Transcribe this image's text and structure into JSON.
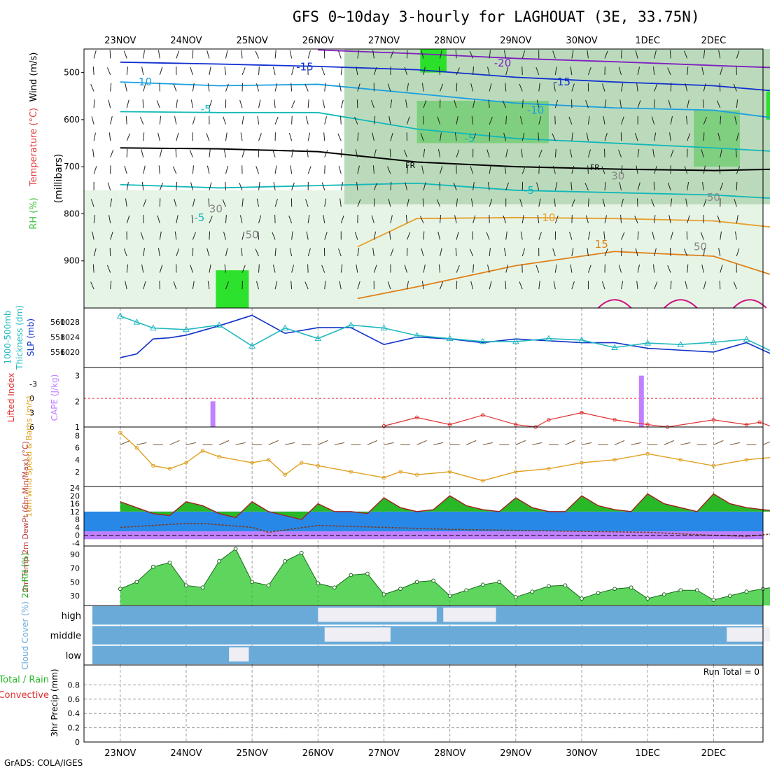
{
  "title": "GFS 0~10day 3-hourly for LAGHOUAT (3E, 33.75N)",
  "credit": "GrADS: COLA/IGES",
  "colors": {
    "grid": "#9a9a9a",
    "rh_light": "#e6f4e6",
    "rh_mid": "#b8d8b8",
    "rh_dark": "#7ccf7c",
    "rh_max": "#22e022",
    "temp_cold": "#1030d0",
    "temp_cool": "#1aa0e0",
    "temp_mid": "#10b8b8",
    "temp_warm": "#e08018",
    "temp_hot": "#d01080",
    "slp": "#1030c8",
    "thickness": "#20b8c0",
    "cape": "#c080ff",
    "lifted": "#e03030",
    "wind": "#e0a020",
    "barb": "#7a5a3a",
    "temp_fill": "#28b828",
    "dewpt_fill": "#2888e8",
    "rh2m": "#28c828",
    "cloud": "#6aaad8"
  },
  "chart_data": [
    {
      "type": "area",
      "panel": "RH / Temperature / Wind cross-section",
      "ylabel": "(millibars)",
      "side_labels": [
        "Wind (m/s)",
        "Temperature (°C)",
        "RH (%)"
      ],
      "yticks": [
        500,
        600,
        700,
        800,
        900
      ],
      "ylim": [
        1000,
        450
      ],
      "contour_labels": [
        "-20",
        "-15",
        "-15",
        "-10",
        "-10",
        "-5",
        "-5",
        "FR",
        "FR",
        "-5",
        "-5",
        "10",
        "15",
        "30",
        "50",
        "50",
        "50",
        "30"
      ],
      "isotherms": [
        {
          "label": "-20",
          "x": [
            3.0,
            4.5,
            6.0,
            7.5,
            9.0,
            10.0
          ],
          "y": [
            452,
            460,
            470,
            477,
            485,
            490
          ]
        },
        {
          "label": "-15",
          "x": [
            0.0,
            1.5,
            3.0,
            4.5,
            6.0,
            7.5,
            9.0,
            10.0
          ],
          "y": [
            478,
            482,
            487,
            494,
            510,
            520,
            528,
            540
          ]
        },
        {
          "label": "-10",
          "x": [
            0.0,
            1.5,
            3.0,
            4.5,
            6.0,
            7.5,
            9.0,
            10.0
          ],
          "y": [
            520,
            528,
            525,
            545,
            565,
            575,
            580,
            598
          ]
        },
        {
          "label": "-5",
          "x": [
            0.0,
            1.5,
            3.0,
            4.5,
            6.0,
            7.5,
            9.0,
            10.0
          ],
          "y": [
            583,
            585,
            585,
            620,
            640,
            650,
            660,
            668
          ]
        },
        {
          "label": "FR",
          "x": [
            0.0,
            1.5,
            3.0,
            4.5,
            6.0,
            7.5,
            9.0,
            10.0
          ],
          "y": [
            660,
            662,
            668,
            690,
            700,
            705,
            708,
            705
          ]
        },
        {
          "label": "-5",
          "x": [
            0.0,
            1.5,
            3.0,
            4.5,
            6.0,
            7.5,
            9.0,
            10.0
          ],
          "y": [
            738,
            745,
            740,
            735,
            750,
            755,
            760,
            768
          ]
        },
        {
          "label": "10",
          "x": [
            3.6,
            4.5,
            6.0,
            7.5,
            9.0,
            10.0
          ],
          "y": [
            870,
            810,
            808,
            810,
            815,
            830
          ]
        },
        {
          "label": "15",
          "x": [
            3.6,
            4.5,
            6.0,
            7.5,
            9.0,
            10.0
          ],
          "y": [
            980,
            955,
            910,
            880,
            890,
            935
          ]
        }
      ],
      "rh_regions": [
        {
          "level": "rh_mid",
          "x": [
            3.4,
            10.0,
            10.0,
            3.4
          ],
          "y": [
            450,
            450,
            780,
            780
          ]
        },
        {
          "level": "rh_dark",
          "x": [
            4.5,
            6.5,
            6.5,
            4.5
          ],
          "y": [
            560,
            560,
            650,
            650
          ]
        },
        {
          "level": "rh_dark",
          "x": [
            8.7,
            9.4,
            9.4,
            8.7
          ],
          "y": [
            580,
            580,
            700,
            700
          ]
        },
        {
          "level": "rh_max",
          "x": [
            1.45,
            1.95,
            1.95,
            1.45
          ],
          "y": [
            920,
            920,
            1000,
            1000
          ]
        },
        {
          "level": "rh_max",
          "x": [
            4.55,
            4.95,
            4.95,
            4.55
          ],
          "y": [
            450,
            450,
            500,
            500
          ]
        },
        {
          "level": "rh_max",
          "x": [
            9.8,
            10.0,
            10.0,
            9.8
          ],
          "y": [
            540,
            540,
            600,
            600
          ]
        }
      ]
    },
    {
      "type": "line",
      "panel": "SLP and 1000-500mb thickness",
      "labels": [
        "1000-500mb",
        "Thickness (dm)",
        "SLP (mb)"
      ],
      "ylabel_left": "1000-500mb Thickness (dm)",
      "ylabel_right": "SLP (mb)",
      "yticks_left": [
        556,
        558,
        560
      ],
      "yticks_right": [
        1020,
        1024,
        1028
      ],
      "series": [
        {
          "name": "SLP (mb)",
          "axis": "right",
          "color": "slp",
          "x": [
            0.0,
            0.25,
            0.5,
            0.75,
            1.0,
            1.5,
            2.0,
            2.5,
            3.0,
            3.5,
            4.0,
            4.5,
            5.0,
            5.5,
            6.0,
            6.5,
            7.0,
            7.5,
            8.0,
            8.5,
            9.0,
            9.5,
            10.0
          ],
          "values": [
            1018.5,
            1019.5,
            1023.5,
            1023.8,
            1024.5,
            1027.0,
            1029.8,
            1025.0,
            1026.5,
            1026.5,
            1022.0,
            1024.0,
            1023.5,
            1022.5,
            1023.5,
            1023.0,
            1022.5,
            1022.5,
            1021.0,
            1020.5,
            1020.0,
            1022.5,
            1018.5
          ]
        },
        {
          "name": "1000-500mb Thickness (dm)",
          "axis": "left",
          "color": "thickness",
          "x": [
            0.0,
            0.25,
            0.5,
            1.0,
            1.5,
            2.0,
            2.5,
            3.0,
            3.5,
            4.0,
            4.5,
            5.0,
            5.5,
            6.0,
            6.5,
            7.0,
            7.5,
            8.0,
            8.5,
            9.0,
            9.5,
            10.0
          ],
          "values": [
            560.8,
            560.0,
            559.2,
            559.0,
            559.6,
            556.8,
            559.2,
            557.8,
            559.6,
            559.2,
            558.2,
            557.8,
            557.4,
            557.4,
            557.8,
            557.6,
            556.6,
            557.2,
            557.0,
            557.3,
            557.7,
            555.6
          ]
        }
      ]
    },
    {
      "type": "bar",
      "panel": "Lifted index and CAPE",
      "ylabel_left": "Lifted Index",
      "ylabel_right": "CAPE (J/kg)",
      "yticks_left": [
        "-3",
        "0",
        "3",
        "6"
      ],
      "yticks_right": [
        "1",
        "2",
        "3"
      ],
      "cape_bars": [
        {
          "x": 1.4,
          "value": 2.0
        },
        {
          "x": 7.9,
          "value": 3.0
        }
      ],
      "lifted_index": {
        "x": [
          4.0,
          4.5,
          5.0,
          5.5,
          6.0,
          6.3,
          6.5,
          7.0,
          7.5,
          8.0,
          8.3,
          9.0,
          9.5,
          9.7,
          9.9
        ],
        "values": [
          5.8,
          4.0,
          5.5,
          3.5,
          5.5,
          6.0,
          4.5,
          3.0,
          4.5,
          5.5,
          6.0,
          4.5,
          5.5,
          5.0,
          6.0
        ]
      }
    },
    {
      "type": "line",
      "panel": "10m wind",
      "ylabel": "10m Wind Speed & Barbs (m/s)",
      "yticks": [
        2,
        4,
        6,
        8
      ],
      "series": [
        {
          "name": "10m Wind",
          "x": [
            0.0,
            0.25,
            0.5,
            0.75,
            1.0,
            1.25,
            1.5,
            2.0,
            2.25,
            2.5,
            2.75,
            3.0,
            3.5,
            4.0,
            4.25,
            4.5,
            5.0,
            5.5,
            6.0,
            6.5,
            7.0,
            7.5,
            8.0,
            8.5,
            9.0,
            9.5,
            10.0
          ],
          "values": [
            8.5,
            6.0,
            3.0,
            2.5,
            3.5,
            5.5,
            4.5,
            3.5,
            4.0,
            1.5,
            3.5,
            3.0,
            2.0,
            1.0,
            2.0,
            1.5,
            2.0,
            0.5,
            2.0,
            2.5,
            3.5,
            4.0,
            5.0,
            4.0,
            3.0,
            4.0,
            4.5
          ]
        }
      ]
    },
    {
      "type": "area",
      "panel": "2m temperature and dew point",
      "ylabel": "2m Temp 2m DewPt (6hr Min/Max) (°C)",
      "yticks": [
        -4,
        0,
        4,
        8,
        12,
        16,
        20,
        24
      ],
      "series": [
        {
          "name": "2m Temp",
          "x": [
            0.0,
            0.25,
            0.5,
            0.75,
            1.0,
            1.25,
            1.5,
            1.75,
            2.0,
            2.25,
            2.5,
            2.75,
            3.0,
            3.25,
            3.5,
            3.75,
            4.0,
            4.25,
            4.5,
            4.75,
            5.0,
            5.25,
            5.5,
            5.75,
            6.0,
            6.25,
            6.5,
            6.75,
            7.0,
            7.25,
            7.5,
            7.75,
            8.0,
            8.25,
            8.5,
            8.75,
            9.0,
            9.25,
            9.5,
            9.75,
            10.0
          ],
          "values": [
            17,
            14,
            11,
            10,
            17,
            15,
            11,
            9,
            17,
            12,
            10,
            8,
            16,
            12,
            12,
            11,
            19,
            14,
            12,
            13,
            20,
            15,
            13,
            12,
            19,
            14,
            12,
            12,
            20,
            15,
            13,
            12,
            21,
            16,
            14,
            12,
            21,
            16,
            14,
            13,
            12
          ]
        },
        {
          "name": "2m DewPt",
          "x": [
            0.0,
            1.0,
            1.25,
            2.0,
            2.25,
            3.0,
            4.0,
            5.0,
            6.0,
            7.0,
            8.0,
            9.0,
            9.5,
            10.0
          ],
          "values": [
            4,
            6,
            6,
            4,
            1.5,
            5,
            4,
            3,
            2.5,
            2,
            1.5,
            0,
            -0.5,
            1
          ]
        }
      ]
    },
    {
      "type": "area",
      "panel": "2m relative humidity",
      "ylabel": "2m RH (%)",
      "yticks": [
        30,
        50,
        70,
        90
      ],
      "series": [
        {
          "name": "2m RH",
          "x": [
            0.0,
            0.25,
            0.5,
            0.75,
            1.0,
            1.25,
            1.5,
            1.75,
            2.0,
            2.25,
            2.5,
            2.75,
            3.0,
            3.25,
            3.5,
            3.75,
            4.0,
            4.25,
            4.5,
            4.75,
            5.0,
            5.25,
            5.5,
            5.75,
            6.0,
            6.25,
            6.5,
            6.75,
            7.0,
            7.25,
            7.5,
            7.75,
            8.0,
            8.25,
            8.5,
            8.75,
            9.0,
            9.25,
            9.5,
            9.75,
            10.0
          ],
          "values": [
            40,
            50,
            72,
            78,
            45,
            42,
            80,
            98,
            50,
            45,
            80,
            92,
            48,
            42,
            60,
            62,
            32,
            40,
            50,
            52,
            30,
            38,
            46,
            50,
            28,
            36,
            44,
            45,
            26,
            34,
            40,
            42,
            26,
            32,
            38,
            38,
            24,
            30,
            36,
            40,
            44
          ]
        }
      ]
    },
    {
      "type": "area",
      "panel": "Cloud cover",
      "ylabel": "Cloud Cover (%)",
      "levels": [
        "high",
        "middle",
        "low"
      ],
      "clear_spans": [
        {
          "level": "high",
          "x0": 3.0,
          "x1": 4.8
        },
        {
          "level": "high",
          "x0": 4.9,
          "x1": 5.7
        },
        {
          "level": "middle",
          "x0": 3.1,
          "x1": 4.1
        },
        {
          "level": "middle",
          "x0": 9.2,
          "x1": 10.0
        },
        {
          "level": "low",
          "x0": 1.65,
          "x1": 1.95
        }
      ]
    },
    {
      "type": "bar",
      "panel": "3hr precipitation",
      "ylabel": "3hr Precip (mm)",
      "side_labels": [
        "Total / Rain",
        "Convective"
      ],
      "yticks": [
        "0",
        "0.2",
        "0.4",
        "0.6",
        "0.8"
      ],
      "ylim": [
        0,
        1
      ],
      "run_total": "Run Total = 0",
      "values": []
    }
  ],
  "x_axis": {
    "labels": [
      "23NOV",
      "24NOV",
      "25NOV",
      "26NOV",
      "27NOV",
      "28NOV",
      "29NOV",
      "30NOV",
      "1DEC",
      "2DEC"
    ],
    "start_day": 22.5
  }
}
